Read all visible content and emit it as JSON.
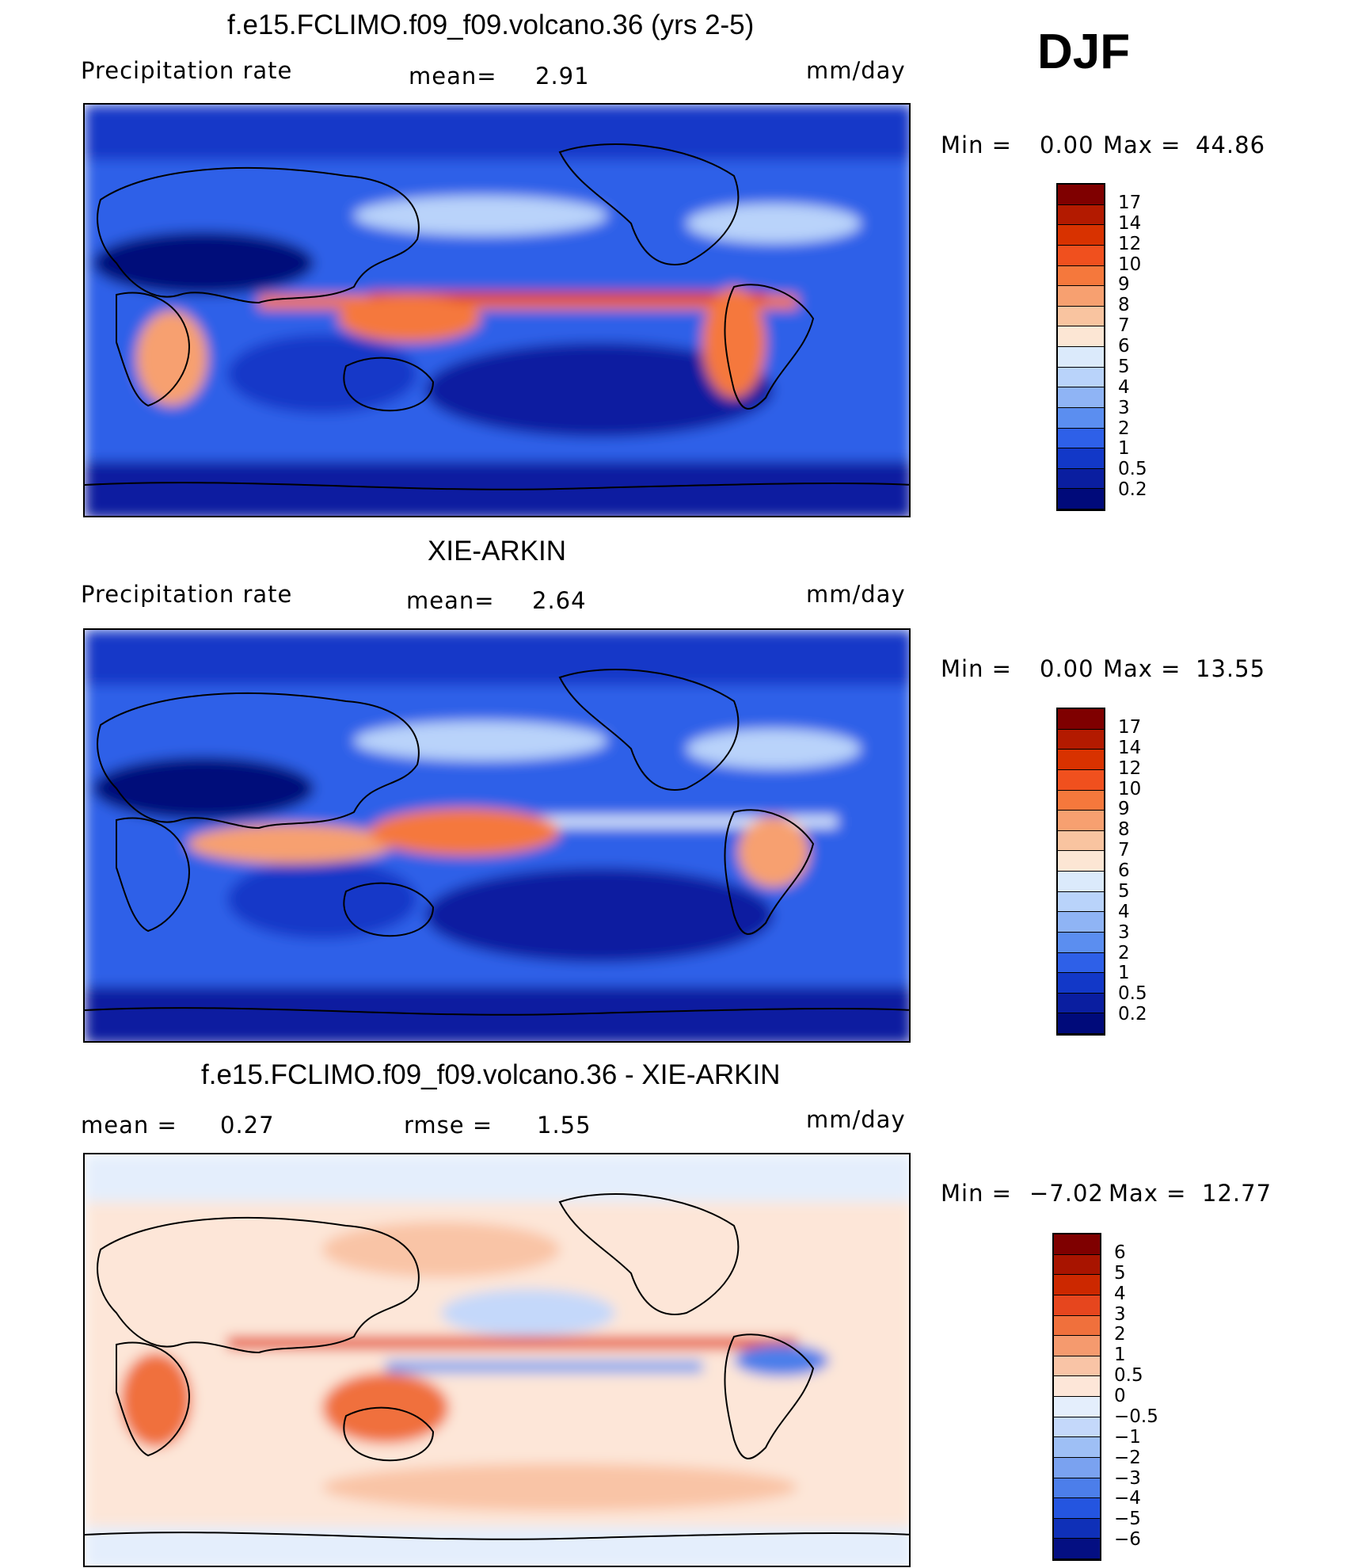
{
  "season": "DJF",
  "panels": [
    {
      "title": "f.e15.FCLIMO.f09_f09.volcano.36 (yrs 2-5)",
      "left_label": "Precipitation  rate",
      "mid_label": "mean=",
      "mid_value": "2.91",
      "unit": "mm/day",
      "min_label": "Min  =",
      "min_value": "0.00",
      "max_label": "Max  =",
      "max_value": "44.86",
      "palette": "precip"
    },
    {
      "title": "XIE-ARKIN",
      "left_label": "Precipitation  rate",
      "mid_label": "mean=",
      "mid_value": "2.64",
      "unit": "mm/day",
      "min_label": "Min  =",
      "min_value": "0.00",
      "max_label": "Max  =",
      "max_value": "13.55",
      "palette": "precip"
    },
    {
      "title": "f.e15.FCLIMO.f09_f09.volcano.36 - XIE-ARKIN",
      "left_label": "mean  =",
      "left_value": "0.27",
      "mid_label": "rmse  =",
      "mid_value": "1.55",
      "unit": "mm/day",
      "min_label": "Min  =",
      "min_value": "−7.02",
      "max_label": "Max  =",
      "max_value": "12.77",
      "palette": "diff"
    }
  ],
  "colorbars": {
    "precip": {
      "labels": [
        "17",
        "14",
        "12",
        "10",
        "9",
        "8",
        "7",
        "6",
        "5",
        "4",
        "3",
        "2",
        "1",
        "0.5",
        "0.2"
      ],
      "colors": [
        "#7f0000",
        "#b31a00",
        "#d83200",
        "#f0501e",
        "#f5783c",
        "#f7a070",
        "#f9c4a0",
        "#fce6d4",
        "#dbeafb",
        "#b9d3fa",
        "#8fb4f5",
        "#5b8ef0",
        "#2e60e8",
        "#1238c8",
        "#0a1ea0",
        "#000a7a"
      ]
    },
    "diff": {
      "labels": [
        "6",
        "5",
        "4",
        "3",
        "2",
        "1",
        "0.5",
        "0",
        "−0.5",
        "−1",
        "−2",
        "−3",
        "−4",
        "−5",
        "−6"
      ],
      "colors": [
        "#7f0000",
        "#a81400",
        "#cc2800",
        "#e6461e",
        "#f0703c",
        "#f59a6e",
        "#f9c4a6",
        "#fde6d8",
        "#e4eefc",
        "#c4d8fa",
        "#9ebff5",
        "#7aa2f0",
        "#4c7eea",
        "#2455e0",
        "#0f30b8",
        "#040f82"
      ]
    }
  }
}
